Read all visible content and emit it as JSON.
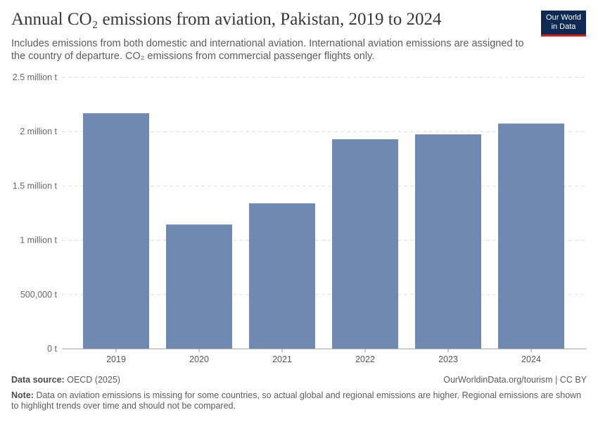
{
  "header": {
    "title": "Annual CO₂ emissions from aviation, Pakistan, 2019 to 2024",
    "subtitle": "Includes emissions from both domestic and international aviation. International aviation emissions are assigned to the country of departure. CO₂ emissions from commercial passenger flights only."
  },
  "logo": {
    "line1": "Our World",
    "line2": "in Data"
  },
  "colors": {
    "bar": "#6f89b0",
    "grid": "#dddddd",
    "axis": "#999999",
    "brand_bg": "#0e2a53",
    "brand_accent": "#ce261e"
  },
  "chart_data": {
    "type": "bar",
    "title": "Annual CO₂ emissions from aviation, Pakistan, 2019 to 2024",
    "xlabel": "",
    "ylabel": "",
    "categories": [
      "2019",
      "2020",
      "2021",
      "2022",
      "2023",
      "2024"
    ],
    "values": [
      2170000,
      1145000,
      1340000,
      1930000,
      1975000,
      2075000
    ],
    "ylim": [
      0,
      2500000
    ],
    "yticks": [
      0,
      500000,
      1000000,
      1500000,
      2000000,
      2500000
    ],
    "ytick_labels": [
      "0 t",
      "500,000 t",
      "1 million t",
      "1.5 million t",
      "2 million t",
      "2.5 million t"
    ],
    "grid": true,
    "legend": "none"
  },
  "footer": {
    "source_label": "Data source:",
    "source_value": "OECD (2025)",
    "url": "OurWorldinData.org/tourism | CC BY",
    "note_label": "Note:",
    "note_text": "Data on aviation emissions is missing for some countries, so actual global and regional emissions are higher. Regional emissions are shown to highlight trends over time and should not be compared."
  }
}
